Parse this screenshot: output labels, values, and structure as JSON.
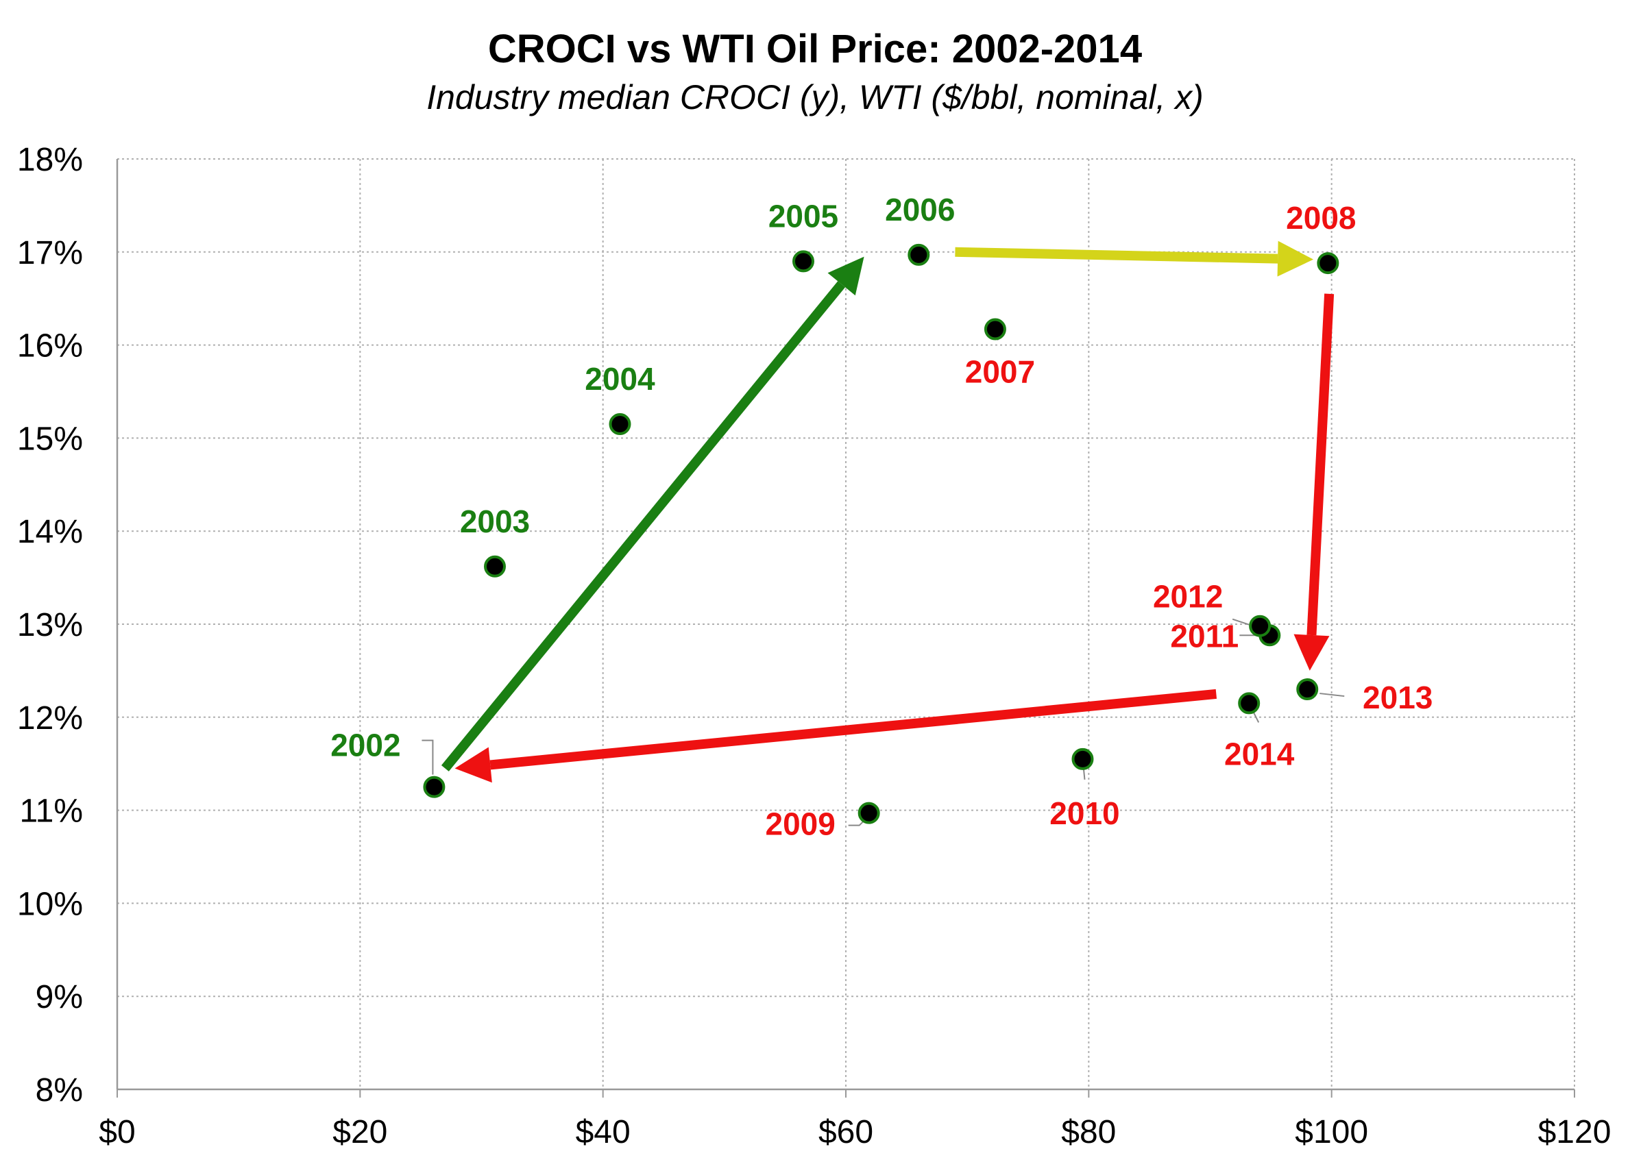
{
  "chart_data": {
    "type": "scatter",
    "title": "CROCI vs WTI Oil Price: 2002-2014",
    "subtitle": "Industry median CROCI (y), WTI ($/bbl, nominal, x)",
    "xlim": [
      0,
      120
    ],
    "ylim": [
      8,
      18
    ],
    "x_ticks": [
      "$0",
      "$20",
      "$40",
      "$60",
      "$80",
      "$100",
      "$120"
    ],
    "y_ticks": [
      "8%",
      "9%",
      "10%",
      "11%",
      "12%",
      "13%",
      "14%",
      "15%",
      "16%",
      "17%",
      "18%"
    ],
    "grid": true,
    "colors": {
      "green": "#1a7f12",
      "red": "#ee1111",
      "yellow": "#d4d41a",
      "point": "#000000",
      "point_edge": "#1a7f12",
      "grid": "#b0b0b0"
    },
    "points": [
      {
        "label": "2002",
        "x": 26.1,
        "y": 11.25,
        "color": "green"
      },
      {
        "label": "2003",
        "x": 31.1,
        "y": 13.62,
        "color": "green"
      },
      {
        "label": "2004",
        "x": 41.4,
        "y": 15.15,
        "color": "green"
      },
      {
        "label": "2005",
        "x": 56.5,
        "y": 16.9,
        "color": "green"
      },
      {
        "label": "2006",
        "x": 66.0,
        "y": 16.97,
        "color": "green"
      },
      {
        "label": "2007",
        "x": 72.3,
        "y": 16.17,
        "color": "red"
      },
      {
        "label": "2008",
        "x": 99.7,
        "y": 16.88,
        "color": "red"
      },
      {
        "label": "2009",
        "x": 61.9,
        "y": 10.97,
        "color": "red"
      },
      {
        "label": "2010",
        "x": 79.5,
        "y": 11.55,
        "color": "red"
      },
      {
        "label": "2011",
        "x": 94.9,
        "y": 12.88,
        "color": "red"
      },
      {
        "label": "2012",
        "x": 94.1,
        "y": 12.98,
        "color": "red"
      },
      {
        "label": "2013",
        "x": 98.0,
        "y": 12.3,
        "color": "red"
      },
      {
        "label": "2014",
        "x": 93.2,
        "y": 12.15,
        "color": "red"
      }
    ],
    "arrows": [
      {
        "from": [
          27,
          11.45
        ],
        "to": [
          61.5,
          16.95
        ],
        "color": "green"
      },
      {
        "from": [
          69,
          17.0
        ],
        "to": [
          98.5,
          16.92
        ],
        "color": "yellow"
      },
      {
        "from": [
          99.8,
          16.55
        ],
        "to": [
          98.2,
          12.5
        ],
        "color": "red"
      },
      {
        "from": [
          90.5,
          12.25
        ],
        "to": [
          27.8,
          11.45
        ],
        "color": "red"
      }
    ]
  }
}
